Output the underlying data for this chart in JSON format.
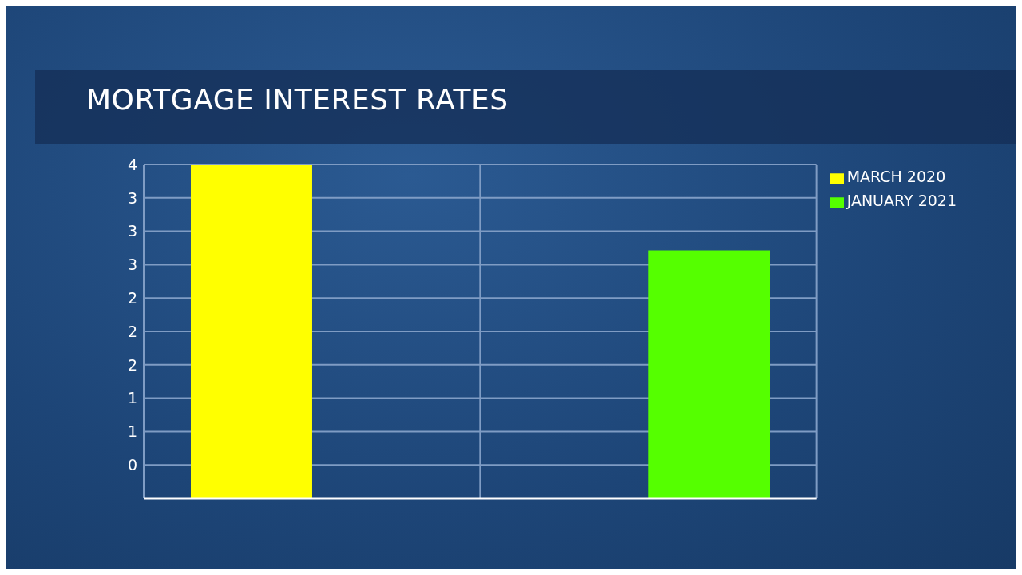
{
  "chart_data": {
    "type": "bar",
    "title": "MORTGAGE INTEREST RATES",
    "categories": [
      null,
      null
    ],
    "series": [
      {
        "name": "MARCH 2020",
        "color": "#ffff00",
        "values": [
          3.62,
          null
        ]
      },
      {
        "name": "JANUARY 2021",
        "color": "#55ff00",
        "values": [
          null,
          2.72
        ]
      }
    ],
    "ylim": [
      0.12,
      3.62
    ],
    "yticks": [
      {
        "value": 0.47,
        "label": "0"
      },
      {
        "value": 0.82,
        "label": "1"
      },
      {
        "value": 1.17,
        "label": "1"
      },
      {
        "value": 1.52,
        "label": "2"
      },
      {
        "value": 1.87,
        "label": "2"
      },
      {
        "value": 2.22,
        "label": "2"
      },
      {
        "value": 2.57,
        "label": "3"
      },
      {
        "value": 2.92,
        "label": "3"
      },
      {
        "value": 3.27,
        "label": "3"
      },
      {
        "value": 3.62,
        "label": "4"
      }
    ],
    "grid": true,
    "legend": "top right"
  }
}
